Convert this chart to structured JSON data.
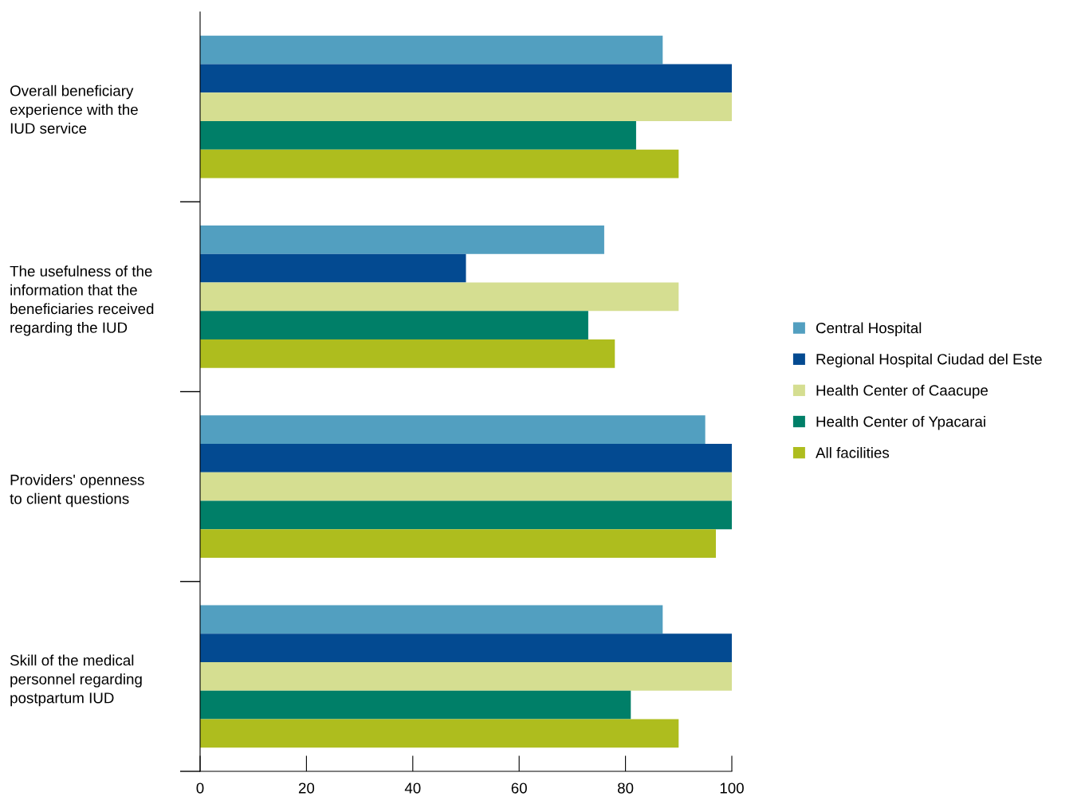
{
  "chart_data": {
    "type": "bar",
    "orientation": "horizontal",
    "categories": [
      "Overall beneficiary\nexperience with the\nIUD service",
      "The usefulness of the\ninformation that the\nbeneficiaries received\nregarding the IUD",
      "Providers' openness\nto client questions",
      "Skill of the medical\npersonnel regarding\npostpartum IUD"
    ],
    "series": [
      {
        "name": "Central Hospital",
        "color": "#529fc0",
        "values": [
          87,
          76,
          95,
          87
        ]
      },
      {
        "name": "Regional Hospital Ciudad del Este",
        "color": "#034a91",
        "values": [
          100,
          50,
          100,
          100
        ]
      },
      {
        "name": "Health Center of Caacupe",
        "color": "#d5de91",
        "values": [
          100,
          90,
          100,
          100
        ]
      },
      {
        "name": "Health Center of Ypacarai",
        "color": "#007f68",
        "values": [
          82,
          73,
          100,
          81
        ]
      },
      {
        "name": "All facilities",
        "color": "#aebd1e",
        "values": [
          90,
          78,
          97,
          90
        ]
      }
    ],
    "xlim": [
      0,
      100
    ],
    "xticks": [
      0,
      20,
      40,
      60,
      80,
      100
    ],
    "grid": false,
    "legend": "right"
  }
}
